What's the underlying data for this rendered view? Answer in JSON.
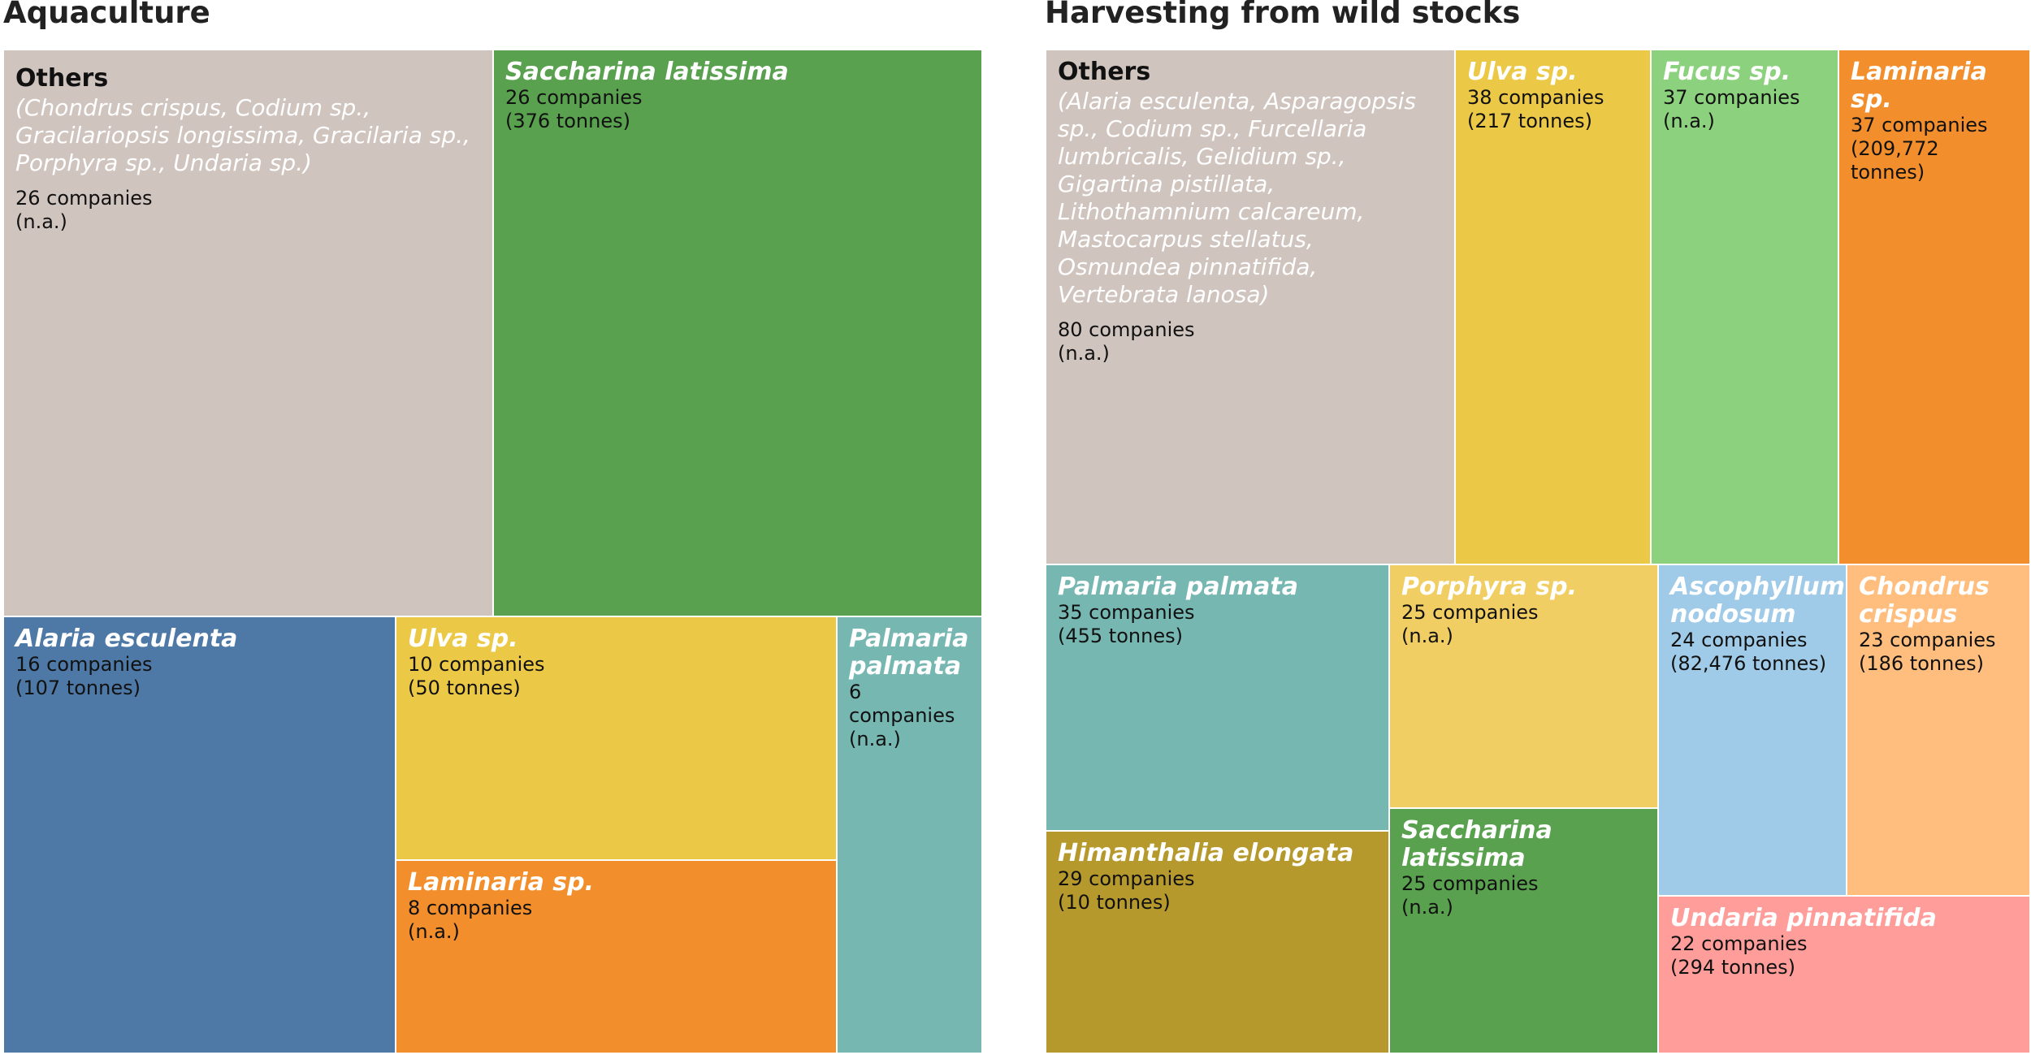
{
  "titles": {
    "aquaculture": "Aquaculture",
    "wild": "Harvesting from wild stocks"
  },
  "chart_data": [
    {
      "type": "treemap",
      "title": "Aquaculture",
      "items": [
        {
          "name": "Others",
          "subtitle": "(Chondrus crispus, Codium sp., Gracilariopsis longissima, Gracilaria sp., Porphyra sp., Undaria sp.)",
          "companies": 26,
          "companies_text": "26 companies",
          "tonnes_text": "(n.a.)",
          "color": "#d0c4bf"
        },
        {
          "name": "Saccharina latissima",
          "companies": 26,
          "companies_text": "26 companies",
          "tonnes_text": "(376 tonnes)",
          "color": "#59a14f"
        },
        {
          "name": "Alaria esculenta",
          "companies": 16,
          "companies_text": "16 companies",
          "tonnes_text": "(107 tonnes)",
          "color": "#4e79a7"
        },
        {
          "name": "Ulva sp.",
          "companies": 10,
          "companies_text": "10 companies",
          "tonnes_text": "(50 tonnes)",
          "color": "#ebc946"
        },
        {
          "name": "Laminaria sp.",
          "companies": 8,
          "companies_text": "8 companies",
          "tonnes_text": "(n.a.)",
          "color": "#f28e2b"
        },
        {
          "name": "Palmaria palmata",
          "companies": 6,
          "companies_text": "6 companies",
          "tonnes_text": "(n.a.)",
          "color": "#76b7b2"
        }
      ]
    },
    {
      "type": "treemap",
      "title": "Harvesting from wild stocks",
      "items": [
        {
          "name": "Others",
          "subtitle": "(Alaria esculenta, Asparagopsis sp., Codium sp., Furcellaria lumbricalis, Gelidium sp., Gigartina pistillata, Lithothamnium calcareum, Mastocarpus stellatus, Osmundea pinnatifida, Vertebrata lanosa)",
          "companies": 80,
          "companies_text": "80 companies",
          "tonnes_text": "(n.a.)",
          "color": "#d0c4bf"
        },
        {
          "name": "Ulva sp.",
          "companies": 38,
          "companies_text": "38 companies",
          "tonnes_text": "(217 tonnes)",
          "color": "#ebc946"
        },
        {
          "name": "Fucus sp.",
          "companies": 37,
          "companies_text": "37 companies",
          "tonnes_text": "(n.a.)",
          "color": "#8cd17d"
        },
        {
          "name": "Laminaria sp.",
          "companies": 37,
          "companies_text": "37 companies",
          "tonnes_text": "(209,772 tonnes)",
          "color": "#f28e2b"
        },
        {
          "name": "Palmaria palmata",
          "companies": 35,
          "companies_text": "35 companies",
          "tonnes_text": "(455 tonnes)",
          "color": "#76b7b2"
        },
        {
          "name": "Porphyra sp.",
          "companies": 25,
          "companies_text": "25 companies",
          "tonnes_text": "(n.a.)",
          "color": "#f1ce63"
        },
        {
          "name": "Ascophyllum nodosum",
          "companies": 24,
          "companies_text": "24 companies",
          "tonnes_text": "(82,476 tonnes)",
          "color": "#a0cbe8"
        },
        {
          "name": "Chondrus crispus",
          "companies": 23,
          "companies_text": "23 companies",
          "tonnes_text": "(186 tonnes)",
          "color": "#ffbe7d"
        },
        {
          "name": "Himanthalia elongata",
          "companies": 29,
          "companies_text": "29 companies",
          "tonnes_text": "(10 tonnes)",
          "color": "#b6992d"
        },
        {
          "name": "Saccharina latissima",
          "companies": 25,
          "companies_text": "25 companies",
          "tonnes_text": "(n.a.)",
          "color": "#59a14f"
        },
        {
          "name": "Undaria pinnatifida",
          "companies": 22,
          "companies_text": "22 companies",
          "tonnes_text": "(294 tonnes)",
          "color": "#ff9d9a"
        }
      ]
    }
  ]
}
